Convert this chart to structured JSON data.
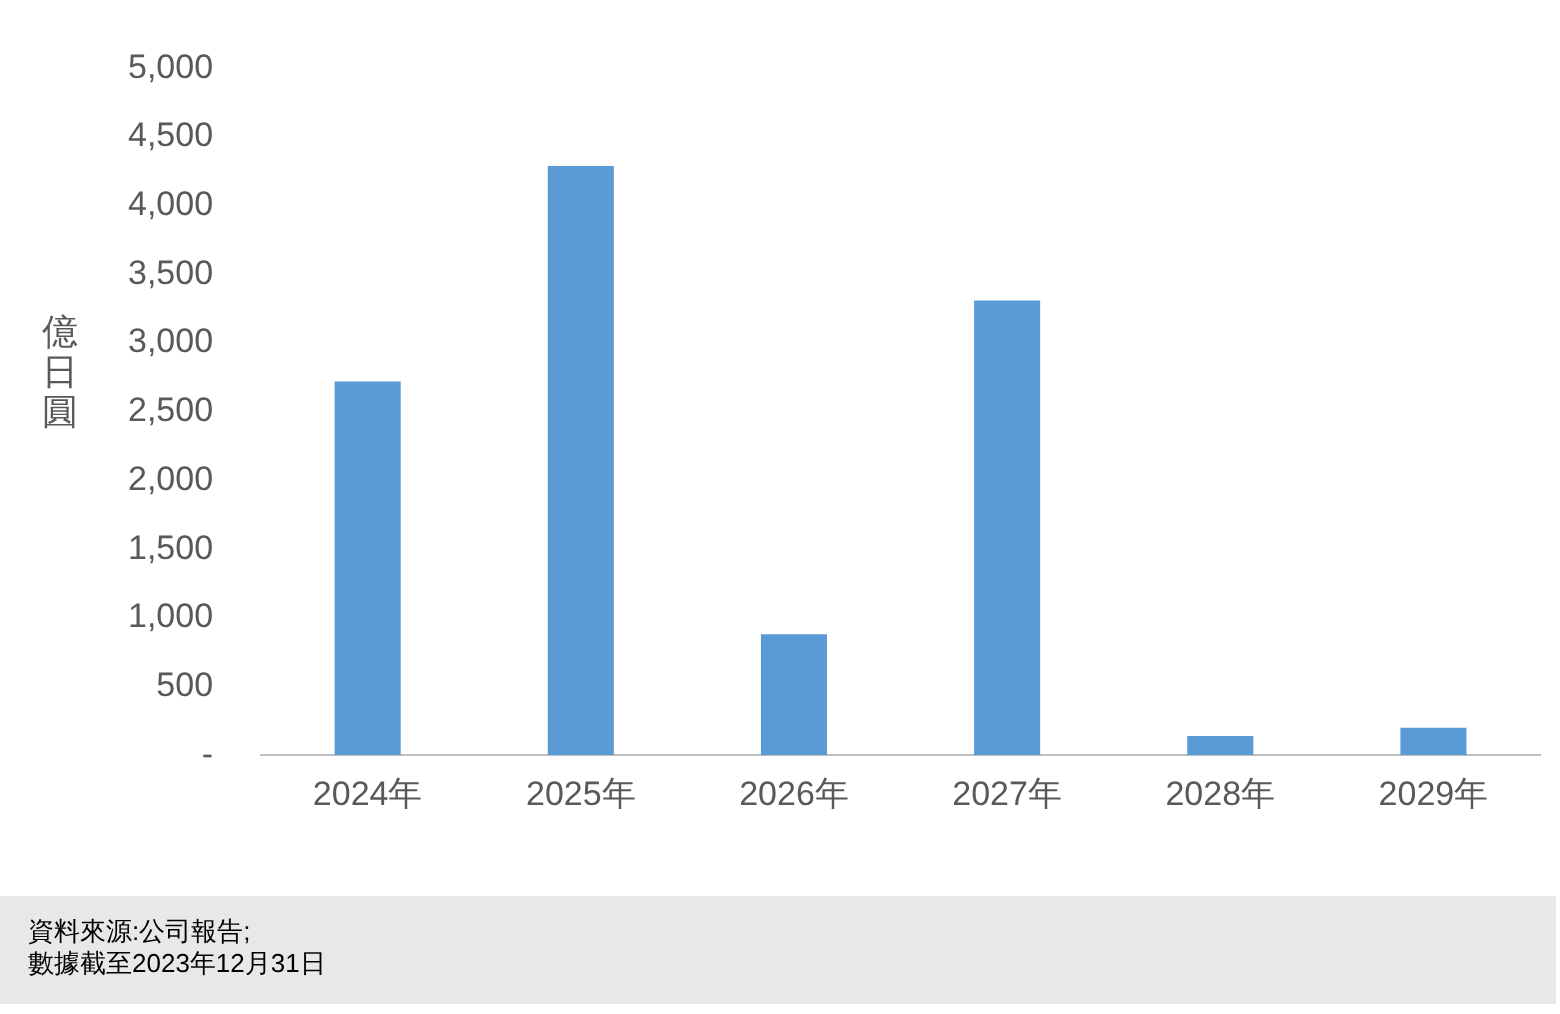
{
  "chart_data": {
    "type": "bar",
    "ylabel": "億日圓",
    "categories": [
      "2024年",
      "2025年",
      "2026年",
      "2027年",
      "2028年",
      "2029年"
    ],
    "values": [
      2720,
      4290,
      880,
      3310,
      140,
      200
    ],
    "color": "#5b9bd5",
    "ylim": [
      0,
      5000
    ],
    "yticks": [
      {
        "value": 0,
        "label": "-"
      },
      500,
      {
        "value": 1000,
        "label": "1,000"
      },
      {
        "value": 1500,
        "label": "1,500"
      },
      {
        "value": 2000,
        "label": "2,000"
      },
      {
        "value": 2500,
        "label": "2,500"
      },
      {
        "value": 3000,
        "label": "3,000"
      },
      {
        "value": 3500,
        "label": "3,500"
      },
      {
        "value": 4000,
        "label": "4,000"
      },
      {
        "value": 4500,
        "label": "4,500"
      },
      {
        "value": 5000,
        "label": "5,000"
      }
    ],
    "grid": false,
    "legend": false,
    "annotations": [
      "資料來源:公司報告;",
      "數據截至2023年12月31日"
    ]
  }
}
